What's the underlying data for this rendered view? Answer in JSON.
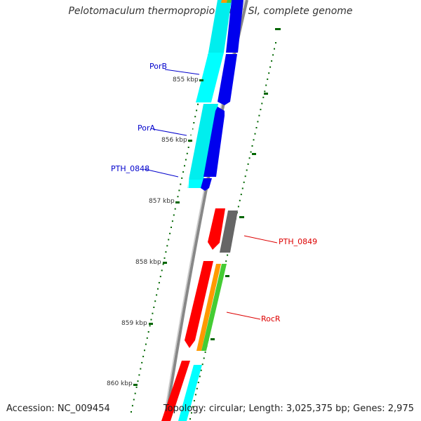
{
  "title": "Pelotomaculum thermopropionicum SI, complete genome",
  "footer": {
    "accession": "Accession: NC_009454",
    "summary": "Topology: circular; Length: 3,025,375 bp; Genes: 2,975"
  },
  "ruler": {
    "ticks": [
      {
        "label": "855 kbp",
        "value": 855
      },
      {
        "label": "856 kbp",
        "value": 856
      },
      {
        "label": "857 kbp",
        "value": 857
      },
      {
        "label": "858 kbp",
        "value": 858
      },
      {
        "label": "859 kbp",
        "value": 859
      },
      {
        "label": "860 kbp",
        "value": 860
      }
    ]
  },
  "gene_labels": [
    {
      "name": "PorB",
      "strand": "reverse",
      "color": "#0000cc"
    },
    {
      "name": "PorA",
      "strand": "reverse",
      "color": "#0000cc"
    },
    {
      "name": "PTH_0848",
      "strand": "reverse",
      "color": "#0000cc"
    },
    {
      "name": "PTH_0849",
      "strand": "forward",
      "color": "#dd0000"
    },
    {
      "name": "RocR",
      "strand": "forward",
      "color": "#dd0000"
    }
  ],
  "colors": {
    "backbone": "#888888",
    "reverse_cds": "#0000ee",
    "reverse_feature": "#00ffff",
    "forward_cds": "#ff0000",
    "forward_gene_orange": "#ff9900",
    "forward_gene_green": "#44cc33",
    "forward_gray": "#666666",
    "tick": "#006600",
    "reverse_label": "#0000cc",
    "forward_label": "#dd0000"
  },
  "legend_icons": [
    "reverse-cds-arrow",
    "forward-cds-arrow"
  ]
}
